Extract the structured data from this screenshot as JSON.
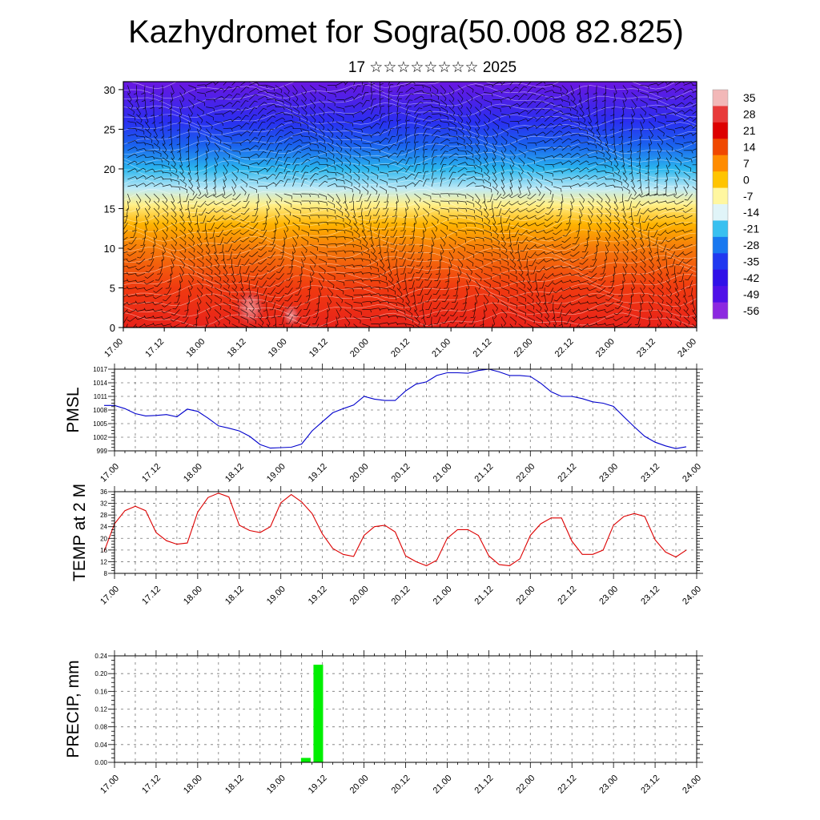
{
  "header": {
    "title": "Kazhydromet for Sogra(50.008 82.825)",
    "subtitle": "17 ☆☆☆☆☆☆☆☆ 2025"
  },
  "chart_data": [
    {
      "type": "heatmap",
      "name": "cross-section",
      "xlabel": "",
      "ylabel": "",
      "x_ticks": [
        "17.00",
        "17.12",
        "18.00",
        "18.12",
        "19.00",
        "19.12",
        "20.00",
        "20.12",
        "21.00",
        "21.12",
        "22.00",
        "22.12",
        "23.00",
        "23.12",
        "24.00"
      ],
      "y_ticks": [
        0,
        5,
        10,
        15,
        20,
        25,
        30
      ],
      "ylim": [
        0,
        31
      ],
      "colorbar": {
        "labels": [
          "35",
          "28",
          "21",
          "14",
          "7",
          "0",
          "-7",
          "-14",
          "-21",
          "-28",
          "-35",
          "-42",
          "-49",
          "-56"
        ],
        "colors": [
          "#f2b8b8",
          "#e83a3a",
          "#dd0000",
          "#f04800",
          "#ff8c00",
          "#ffc400",
          "#fff7a0",
          "#e0f4f8",
          "#38c0f0",
          "#1878f0",
          "#2038f0",
          "#3010e8",
          "#5010e8",
          "#8c28e0"
        ]
      },
      "level_colors": [
        {
          "level": 0,
          "color": "#e8221a"
        },
        {
          "level": 5,
          "color": "#f03a10"
        },
        {
          "level": 10,
          "color": "#f57a0a"
        },
        {
          "level": 13,
          "color": "#ffb300"
        },
        {
          "level": 15.5,
          "color": "#fff08a"
        },
        {
          "level": 17.5,
          "color": "#bfeaf6"
        },
        {
          "level": 20,
          "color": "#2ab6ee"
        },
        {
          "level": 23,
          "color": "#1a62ee"
        },
        {
          "level": 26,
          "color": "#2a2ef0"
        },
        {
          "level": 31,
          "color": "#6a16e0"
        }
      ],
      "warm_spots": [
        {
          "x": 18.55,
          "y": 2.5,
          "rx": 0.2,
          "ry": 2.5
        },
        {
          "x": 19.05,
          "y": 1.5,
          "rx": 0.12,
          "ry": 1.6
        }
      ]
    },
    {
      "type": "line",
      "name": "pmsl",
      "ylabel": "PMSL",
      "color": "#0000cc",
      "ylim": [
        999,
        1017
      ],
      "y_ticks": [
        999,
        1002,
        1005,
        1008,
        1011,
        1014,
        1017
      ],
      "x_ticks": [
        "17.00",
        "17.12",
        "18.00",
        "18.12",
        "19.00",
        "19.12",
        "20.00",
        "20.12",
        "21.00",
        "21.12",
        "22.00",
        "22.12",
        "23.00",
        "23.12",
        "24.00"
      ],
      "x": [
        16.875,
        17.0,
        17.125,
        17.25,
        17.375,
        17.5,
        17.625,
        17.75,
        17.875,
        18.0,
        18.125,
        18.25,
        18.375,
        18.5,
        18.625,
        18.75,
        18.875,
        19.0,
        19.125,
        19.25,
        19.375,
        19.5,
        19.625,
        19.75,
        19.875,
        20.0,
        20.125,
        20.25,
        20.375,
        20.5,
        20.625,
        20.75,
        20.875,
        21.0,
        21.125,
        21.25,
        21.375,
        21.5,
        21.625,
        21.75,
        21.875,
        22.0,
        22.125,
        22.25,
        22.375,
        22.5,
        22.625,
        22.75,
        22.875,
        23.0,
        23.125,
        23.25,
        23.375,
        23.5,
        23.625,
        23.75,
        23.875
      ],
      "values": [
        1009,
        1009,
        1008.3,
        1007.2,
        1006.7,
        1006.8,
        1007,
        1006.5,
        1008.2,
        1007.7,
        1006.2,
        1004.5,
        1004,
        1003.4,
        1002.2,
        1000.4,
        999.6,
        999.7,
        999.8,
        1000.5,
        1003.4,
        1005.4,
        1007.4,
        1008.3,
        1009.1,
        1011,
        1010.4,
        1010.1,
        1010.1,
        1012.2,
        1013.7,
        1014.2,
        1015.6,
        1016.2,
        1016.2,
        1016.1,
        1016.7,
        1017,
        1016.4,
        1015.6,
        1015.6,
        1015.4,
        1013.9,
        1012,
        1011,
        1011,
        1010.5,
        1009.8,
        1009.5,
        1008.8,
        1006.5,
        1004.3,
        1002.2,
        1000.9,
        1000.1,
        999.5,
        999.9
      ]
    },
    {
      "type": "line",
      "name": "temp2m",
      "ylabel": "TEMP at 2 M",
      "color": "#dd0000",
      "ylim": [
        8,
        36
      ],
      "y_ticks": [
        8,
        12,
        16,
        20,
        24,
        28,
        32,
        36
      ],
      "x_ticks": [
        "17.00",
        "17.12",
        "18.00",
        "18.12",
        "19.00",
        "19.12",
        "20.00",
        "20.12",
        "21.00",
        "21.12",
        "22.00",
        "22.12",
        "23.00",
        "23.12",
        "24.00"
      ],
      "x": [
        16.875,
        17.0,
        17.125,
        17.25,
        17.375,
        17.5,
        17.625,
        17.75,
        17.875,
        18.0,
        18.125,
        18.25,
        18.375,
        18.5,
        18.625,
        18.75,
        18.875,
        19.0,
        19.125,
        19.25,
        19.375,
        19.5,
        19.625,
        19.75,
        19.875,
        20.0,
        20.125,
        20.25,
        20.375,
        20.5,
        20.625,
        20.75,
        20.875,
        21.0,
        21.125,
        21.25,
        21.375,
        21.5,
        21.625,
        21.75,
        21.875,
        22.0,
        22.125,
        22.25,
        22.375,
        22.5,
        22.625,
        22.75,
        22.875,
        23.0,
        23.125,
        23.25,
        23.375,
        23.5,
        23.625,
        23.75,
        23.875
      ],
      "values": [
        15.5,
        25,
        29.5,
        31,
        29.5,
        22,
        19.2,
        18,
        18.4,
        29,
        34,
        35.5,
        34.2,
        24.5,
        22.7,
        22,
        24,
        32.2,
        35,
        32.5,
        28.5,
        21.5,
        16.5,
        14.5,
        13.8,
        21,
        24,
        24.5,
        22.2,
        14,
        12,
        10.6,
        12.5,
        20,
        23,
        23,
        21,
        14,
        11,
        10.6,
        13,
        21,
        25,
        27,
        27,
        19,
        14.5,
        14.5,
        16,
        24.5,
        27.5,
        28.5,
        27.5,
        19.5,
        15.3,
        13.6,
        16
      ]
    },
    {
      "type": "bar",
      "name": "precip",
      "ylabel": "PRECIP, mm",
      "color": "#00ee00",
      "ylim": [
        0,
        0.24
      ],
      "y_ticks": [
        "0.00",
        "0.04",
        "0.08",
        "0.12",
        "0.16",
        "0.20",
        "0.24"
      ],
      "x_ticks": [
        "17.00",
        "17.12",
        "18.00",
        "18.12",
        "19.00",
        "19.12",
        "20.00",
        "20.12",
        "21.00",
        "21.12",
        "22.00",
        "22.12",
        "23.00",
        "23.12",
        "24.00"
      ],
      "x": [
        19.3,
        19.45
      ],
      "values": [
        0.01,
        0.22
      ]
    }
  ]
}
